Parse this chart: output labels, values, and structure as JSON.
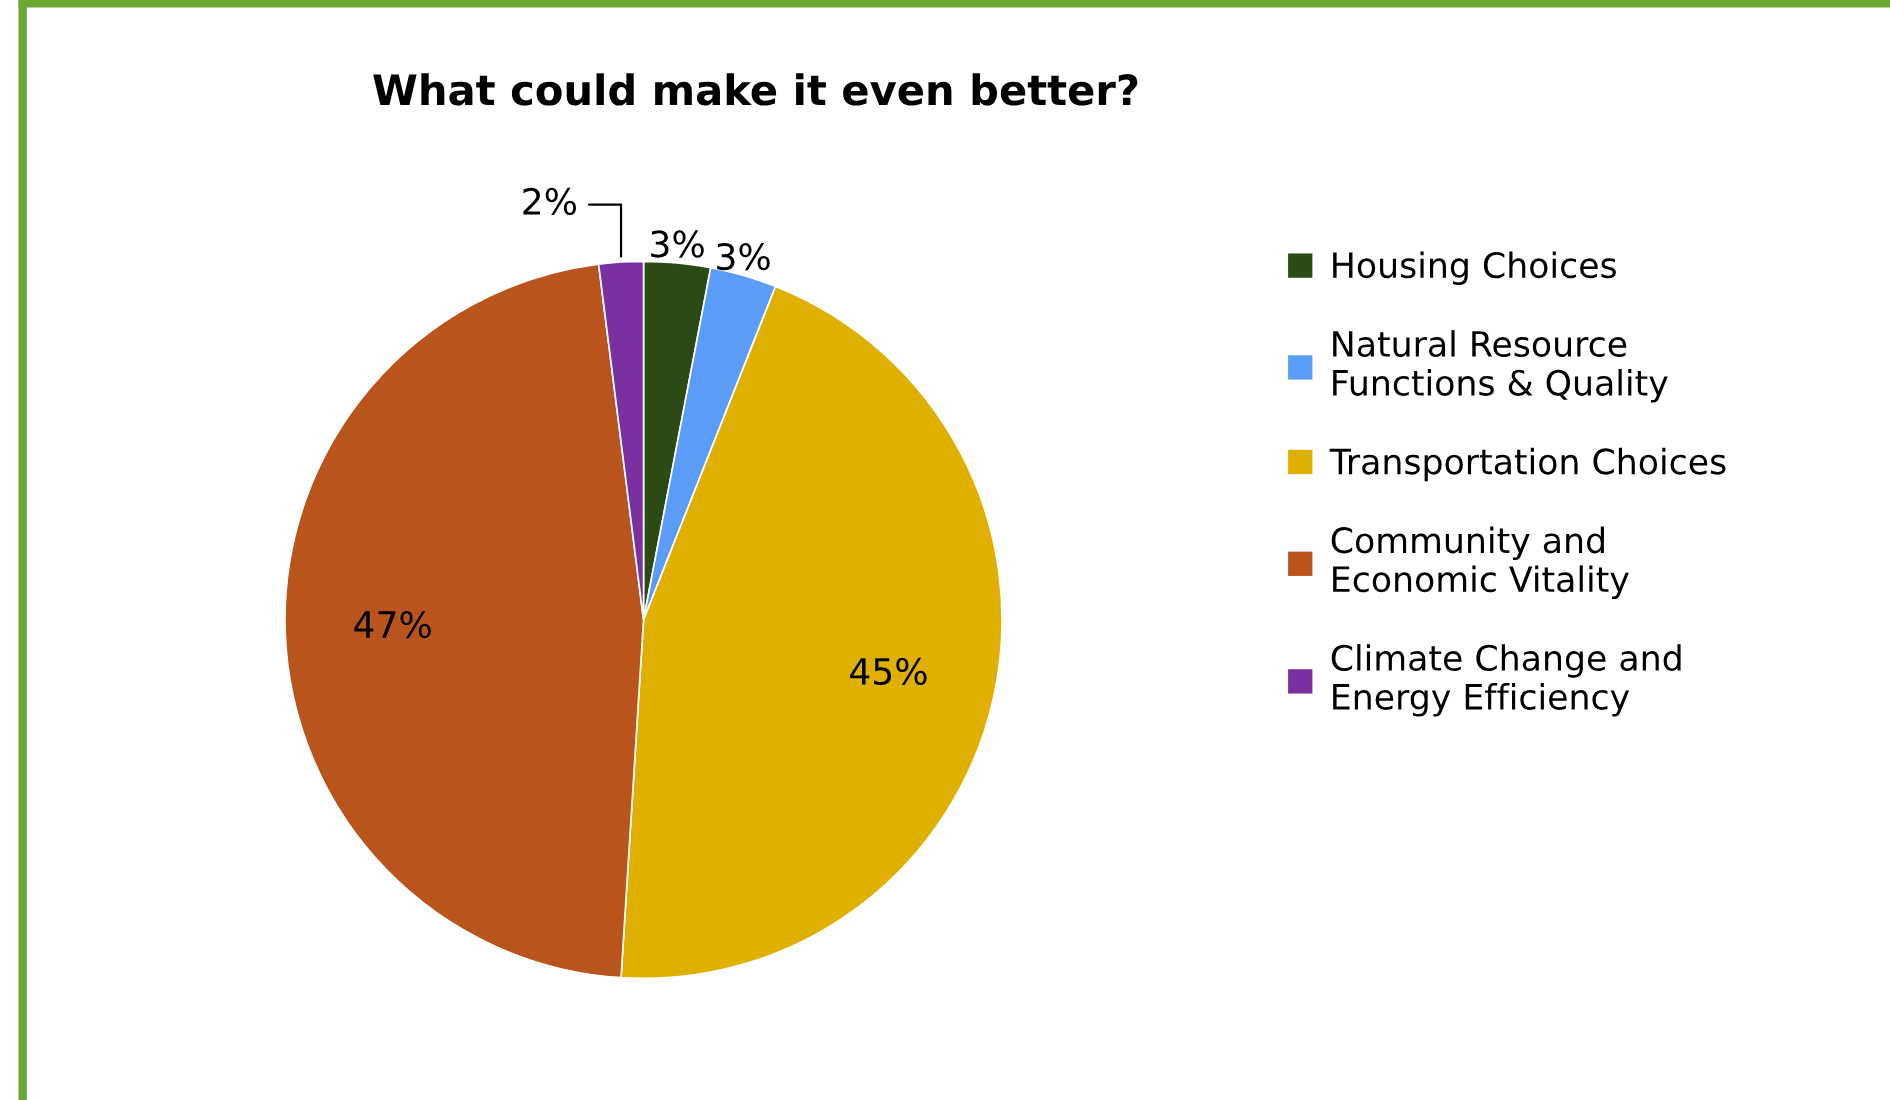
{
  "chart_data": {
    "type": "pie",
    "title": "What could make it even better?",
    "categories": [
      "Housing Choices",
      "Natural Resource\nFunctions & Quality",
      "Transportation Choices",
      "Community and\nEconomic Vitality",
      "Climate Change and\nEnergy Efficiency"
    ],
    "values": [
      3,
      3,
      45,
      47,
      2
    ],
    "colors": [
      "#2b4a14",
      "#5b9cf8",
      "#e0b000",
      "#b9541c",
      "#7a30a0"
    ],
    "value_labels": [
      "3%",
      "3%",
      "45%",
      "47%",
      "2%"
    ],
    "legend": "right"
  }
}
